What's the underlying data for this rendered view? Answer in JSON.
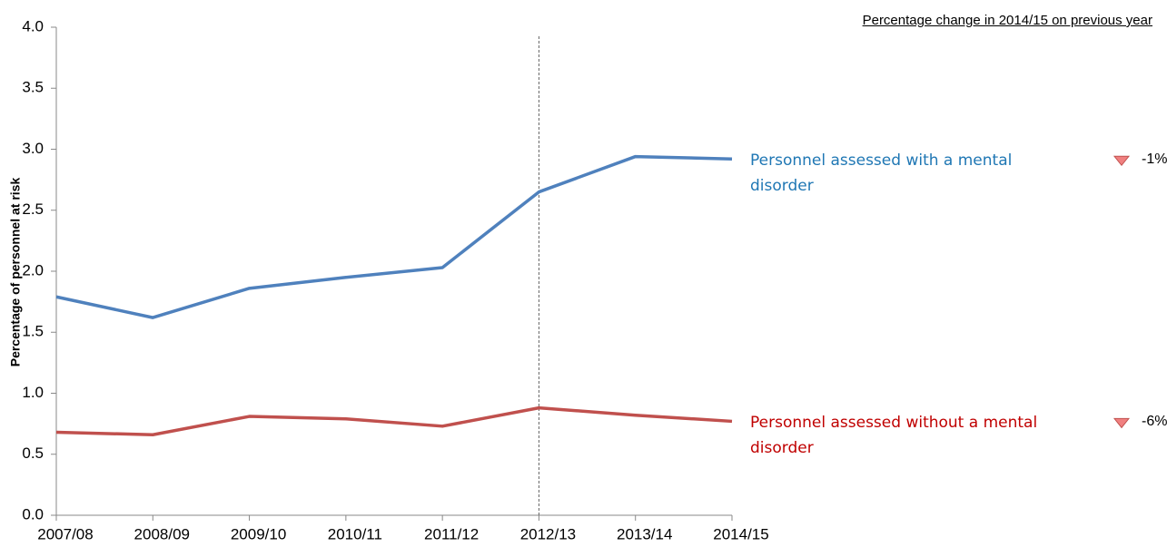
{
  "chart_data": {
    "type": "line",
    "y_label": "Percentage of personnel at risk",
    "note": "Percentage change in 2014/15 on previous year",
    "categories": [
      "2007/08",
      "2008/09",
      "2009/10",
      "2010/11",
      "2011/12",
      "2012/13",
      "2013/14",
      "2014/15"
    ],
    "series": [
      {
        "name": "Personnel assessed with a mental disorder",
        "color": "#4f81bd",
        "label_color": "#1f77b4",
        "values": [
          1.79,
          1.62,
          1.86,
          1.95,
          2.03,
          2.65,
          2.94,
          2.92
        ],
        "change_label": "-1%"
      },
      {
        "name": "Personnel assessed without a mental disorder",
        "color": "#c0504d",
        "label_color": "#c00000",
        "values": [
          0.68,
          0.66,
          0.81,
          0.79,
          0.73,
          0.88,
          0.82,
          0.77
        ],
        "change_label": "-6%"
      }
    ],
    "vline_at": "2012/13",
    "ylim": [
      0,
      4
    ],
    "yticks": [
      {
        "value": 0,
        "label": "0.0"
      },
      {
        "value": 0.5,
        "label": "0.5"
      },
      {
        "value": 1,
        "label": "1.0"
      },
      {
        "value": 1.5,
        "label": "1.5"
      },
      {
        "value": 2,
        "label": "2.0"
      },
      {
        "value": 2.5,
        "label": "2.5"
      },
      {
        "value": 3,
        "label": "3.0"
      },
      {
        "value": 3.5,
        "label": "3.5"
      },
      {
        "value": 4,
        "label": "4.0"
      }
    ]
  }
}
